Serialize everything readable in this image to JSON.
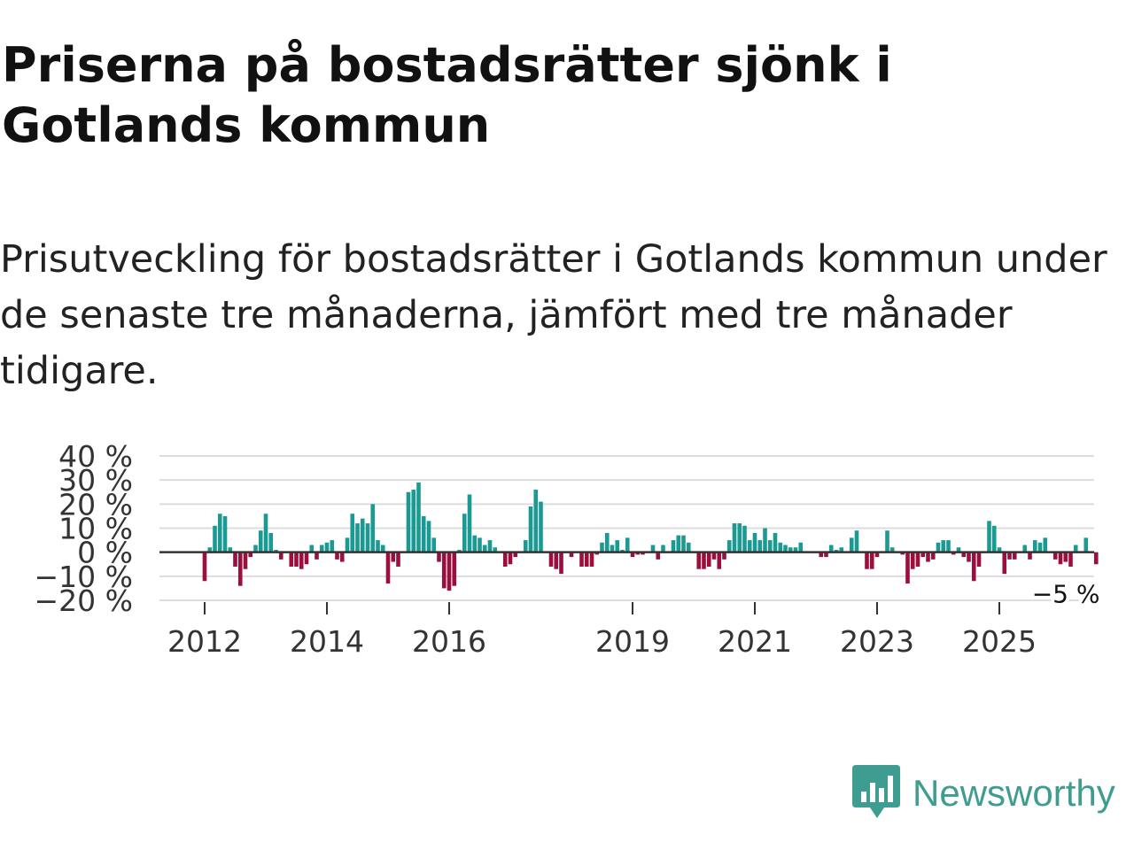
{
  "title": "Priserna på bostadsrätter sjönk i Gotlands kommun",
  "subtitle": "Prisutveckling för bostadsrätter i Gotlands kommun under de senaste tre månaderna, jämfört med tre månader tidigare.",
  "brand": {
    "name": "Newsworthy",
    "icon": "newsworthy-chart-logo-icon"
  },
  "colors": {
    "positive": "#1a9a92",
    "negative": "#9c0e3c",
    "grid": "#dddddd",
    "zero": "#333333",
    "brand": "#3e9c91"
  },
  "chart_data": {
    "type": "bar",
    "title": "",
    "xlabel": "",
    "ylabel": "",
    "ylim": [
      -20,
      40
    ],
    "yticks": [
      {
        "value": 40,
        "label": "40 %"
      },
      {
        "value": 30,
        "label": "30 %"
      },
      {
        "value": 20,
        "label": "20 %"
      },
      {
        "value": 10,
        "label": "10 %"
      },
      {
        "value": 0,
        "label": "0 %"
      },
      {
        "value": -10,
        "label": "−10 %"
      },
      {
        "value": -20,
        "label": "−20 %"
      }
    ],
    "xticks": [
      {
        "index": 0,
        "label": "2012"
      },
      {
        "index": 24,
        "label": "2014"
      },
      {
        "index": 48,
        "label": "2016"
      },
      {
        "index": 84,
        "label": "2019"
      },
      {
        "index": 108,
        "label": "2021"
      },
      {
        "index": 132,
        "label": "2023"
      },
      {
        "index": 156,
        "label": "2025"
      }
    ],
    "start": "2012-01",
    "annotation": {
      "label": "−5 %",
      "index": 166,
      "value": -5
    },
    "values": [
      -12,
      2,
      11,
      16,
      15,
      2,
      -6,
      -14,
      -7,
      -2,
      3,
      9,
      16,
      8,
      1,
      -3,
      0,
      -6,
      -6,
      -7,
      -5,
      3,
      -3,
      3,
      4,
      5,
      -3,
      -4,
      6,
      16,
      12,
      14,
      12,
      20,
      5,
      3,
      -13,
      -4,
      -6,
      0,
      25,
      26,
      29,
      15,
      13,
      6,
      -4,
      -15,
      -16,
      -14,
      1,
      16,
      24,
      7,
      6,
      3,
      5,
      2,
      0,
      -6,
      -5,
      -2,
      0,
      5,
      19,
      26,
      21,
      0,
      -6,
      -7,
      -9,
      0,
      -2,
      0,
      -6,
      -6,
      -6,
      -1,
      4,
      8,
      3,
      5,
      1,
      6,
      -2,
      -1,
      -1,
      0,
      3,
      -3,
      3,
      0,
      5,
      7,
      7,
      4,
      0,
      -7,
      -7,
      -6,
      -3,
      -7,
      -3,
      5,
      12,
      12,
      11,
      5,
      8,
      5,
      10,
      5,
      8,
      4,
      3,
      2,
      2,
      4,
      0,
      0,
      0,
      -2,
      -2,
      3,
      1,
      2,
      0,
      6,
      9,
      0,
      -7,
      -7,
      -2,
      0,
      9,
      2,
      0,
      -1,
      -13,
      -7,
      -6,
      -2,
      -4,
      -3,
      4,
      5,
      5,
      -1,
      2,
      -2,
      -4,
      -12,
      -6,
      0,
      13,
      11,
      2,
      -9,
      -3,
      -3,
      0,
      3,
      -3,
      5,
      4,
      6,
      0,
      -3,
      -5,
      -4,
      -6,
      3,
      0,
      6,
      0,
      -5
    ]
  }
}
